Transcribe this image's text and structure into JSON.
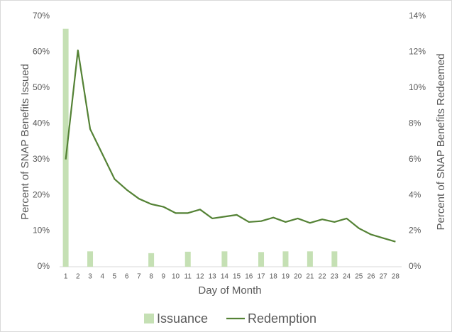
{
  "chart_data": {
    "type": "bar_line",
    "y_title": "Percent of SNAP Benefits Issued",
    "y2_title": "Percent of SNAP Benefits Redeemed",
    "x_title": "Day of Month",
    "categories": [
      "1",
      "2",
      "3",
      "4",
      "5",
      "6",
      "7",
      "8",
      "9",
      "10",
      "11",
      "12",
      "13",
      "14",
      "15",
      "16",
      "17",
      "18",
      "19",
      "20",
      "21",
      "22",
      "23",
      "24",
      "25",
      "26",
      "27",
      "28"
    ],
    "series": [
      {
        "name": "Issuance",
        "type": "bar",
        "color": "#c5e0b4",
        "values": [
          66.5,
          0,
          4.3,
          0,
          0,
          0,
          0,
          3.8,
          0,
          0,
          4.2,
          0,
          0,
          4.3,
          0,
          0,
          4.1,
          0,
          4.3,
          0,
          4.3,
          0,
          4.3,
          0,
          0,
          0,
          0,
          0
        ]
      },
      {
        "name": "Redemption",
        "type": "line",
        "axis": "y2",
        "color": "#548235",
        "values": [
          6.0,
          12.1,
          7.7,
          6.3,
          4.9,
          4.3,
          3.8,
          3.5,
          3.35,
          3.0,
          3.0,
          3.2,
          2.7,
          2.8,
          2.9,
          2.5,
          2.55,
          2.75,
          2.5,
          2.7,
          2.45,
          2.65,
          2.5,
          2.7,
          2.15,
          1.8,
          1.6,
          1.4
        ]
      }
    ],
    "ylim": [
      0,
      70
    ],
    "yticks": [
      {
        "value": 0,
        "label": "0%"
      },
      {
        "value": 10,
        "label": "10%"
      },
      {
        "value": 20,
        "label": "20%"
      },
      {
        "value": 30,
        "label": "30%"
      },
      {
        "value": 40,
        "label": "40%"
      },
      {
        "value": 50,
        "label": "50%"
      },
      {
        "value": 60,
        "label": "60%"
      },
      {
        "value": 70,
        "label": "70%"
      }
    ],
    "y2lim": [
      0,
      14
    ],
    "y2ticks": [
      {
        "value": 0,
        "label": "0%"
      },
      {
        "value": 2,
        "label": "2%"
      },
      {
        "value": 4,
        "label": "4%"
      },
      {
        "value": 6,
        "label": "6%"
      },
      {
        "value": 8,
        "label": "8%"
      },
      {
        "value": 10,
        "label": "10%"
      },
      {
        "value": 12,
        "label": "12%"
      },
      {
        "value": 14,
        "label": "14%"
      }
    ],
    "legend": "bottom",
    "grid": false
  }
}
